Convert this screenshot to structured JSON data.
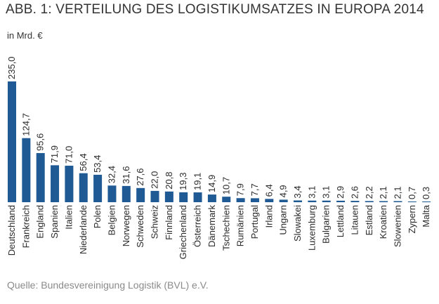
{
  "header": {
    "title": "ABB. 1: VERTEILUNG DES LOGISTIKUMSATZES IN EUROPA 2014",
    "unit": "in Mrd. €"
  },
  "footer": {
    "source": "Quelle: Bundesvereinigung Logistik (BVL) e.V."
  },
  "colors": {
    "bar": "#1f5a94",
    "text": "#2b2b2b"
  },
  "chart_data": {
    "type": "bar",
    "title": "ABB. 1: VERTEILUNG DES LOGISTIKUMSATZES IN EUROPA 2014",
    "ylabel": "in Mrd. €",
    "xlabel": "",
    "ylim": [
      0,
      235
    ],
    "grid": false,
    "legend": "none",
    "categories": [
      "Deutschland",
      "Frankreich",
      "England",
      "Spanien",
      "Italien",
      "Niederlande",
      "Polen",
      "Belgien",
      "Norwegen",
      "Schweden",
      "Schweiz",
      "Finnland",
      "Griechenland",
      "Österreich",
      "Dänemark",
      "Tschechien",
      "Rumänien",
      "Portugal",
      "Irland",
      "Ungarn",
      "Slowakei",
      "Luxemburg",
      "Bulgarien",
      "Lettland",
      "Litauen",
      "Estland",
      "Kroatien",
      "Slowenien",
      "Zypern",
      "Malta"
    ],
    "values": [
      235.0,
      124.7,
      95.6,
      71.9,
      71.0,
      56.4,
      53.4,
      32.4,
      31.6,
      27.6,
      22.0,
      20.8,
      19.3,
      19.1,
      14.9,
      10.7,
      7.9,
      7.7,
      6.4,
      4.9,
      3.4,
      3.1,
      3.1,
      2.9,
      2.6,
      2.2,
      2.1,
      2.1,
      0.7,
      0.3
    ],
    "value_labels": [
      "235,0",
      "124,7",
      "95,6",
      "71,9",
      "71,0",
      "56,4",
      "53,4",
      "32,4",
      "31,6",
      "27,6",
      "22,0",
      "20,8",
      "19,3",
      "19,1",
      "14,9",
      "10,7",
      "7,9",
      "7,7",
      "6,4",
      "4,9",
      "3,4",
      "3,1",
      "3,1",
      "2,9",
      "2,6",
      "2,2",
      "2,1",
      "2,1",
      "0,7",
      "0,3"
    ]
  }
}
